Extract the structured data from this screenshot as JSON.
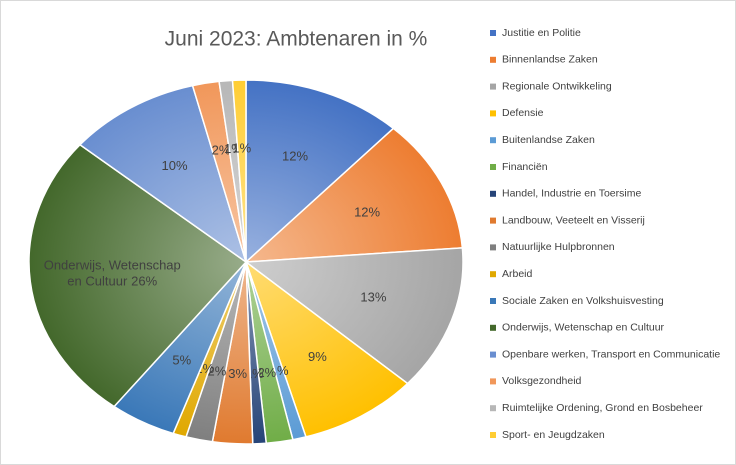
{
  "chart_data": {
    "type": "pie",
    "title": "Juni 2023: Ambtenaren in %",
    "categories": [
      "Justitie en Politie",
      "Binnenlandse Zaken",
      "Regionale Ontwikkeling",
      "Defensie",
      "Buitenlandse Zaken",
      "Financiën",
      "Handel, Industrie en Toersime",
      "Landbouw, Veeteelt en Visserij",
      "Natuurlijke Hulpbronnen",
      "Arbeid",
      "Sociale Zaken en Volkshuisvesting",
      "Onderwijs, Wetenschap en Cultuur",
      "Openbare werken, Transport en Communicatie",
      "Volksgezondheid",
      "Ruimtelijke Ordening, Grond en Bosbeheer",
      "Sport- en Jeugdzaken"
    ],
    "values": [
      12,
      12,
      13,
      9,
      1,
      2,
      1,
      3,
      2,
      1,
      5,
      26,
      10,
      2,
      1,
      1
    ],
    "value_labels": [
      "12%",
      "12%",
      "13%",
      "9%",
      "1%",
      "2%",
      "1%",
      "3%",
      "2%",
      "1%",
      "5%",
      "26%",
      "10%",
      "2%",
      "1%",
      "1%"
    ],
    "colors": [
      "#4472c4",
      "#ed7d31",
      "#a5a5a5",
      "#ffc000",
      "#5b9bd5",
      "#70ad47",
      "#264478",
      "#e07a2f",
      "#7f7f7f",
      "#e0a800",
      "#3a78b8",
      "#43682b",
      "#698ed0",
      "#f1975a",
      "#b7b7b7",
      "#ffcd33"
    ],
    "legend": "right"
  }
}
